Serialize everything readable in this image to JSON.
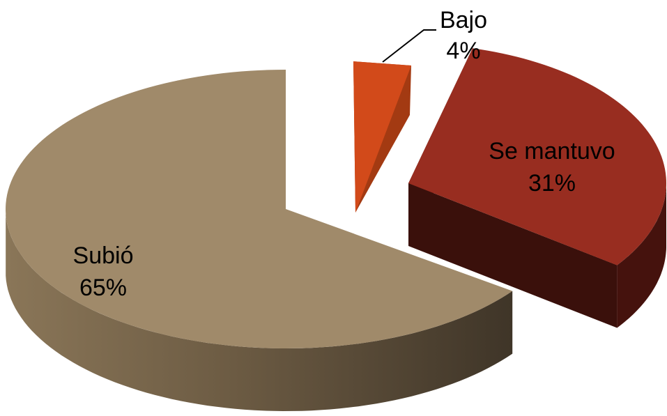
{
  "chart_data": {
    "type": "pie",
    "style": "3d-exploded",
    "categories": [
      "Subió",
      "Bajo",
      "Se mantuvo"
    ],
    "values": [
      65,
      4,
      31
    ],
    "series": [
      {
        "values": [
          65,
          4,
          31
        ],
        "colors": [
          "#A08A6A",
          "#D24A1A",
          "#982D20"
        ],
        "side_colors": [
          "#5E4F3A",
          "#A33A12",
          "#45120D"
        ]
      }
    ],
    "data_labels": [
      {
        "name": "Subió",
        "value_text": "65%"
      },
      {
        "name": "Bajo",
        "value_text": "4%"
      },
      {
        "name": "Se mantuvo",
        "value_text": "31%"
      }
    ],
    "legend": "none"
  }
}
